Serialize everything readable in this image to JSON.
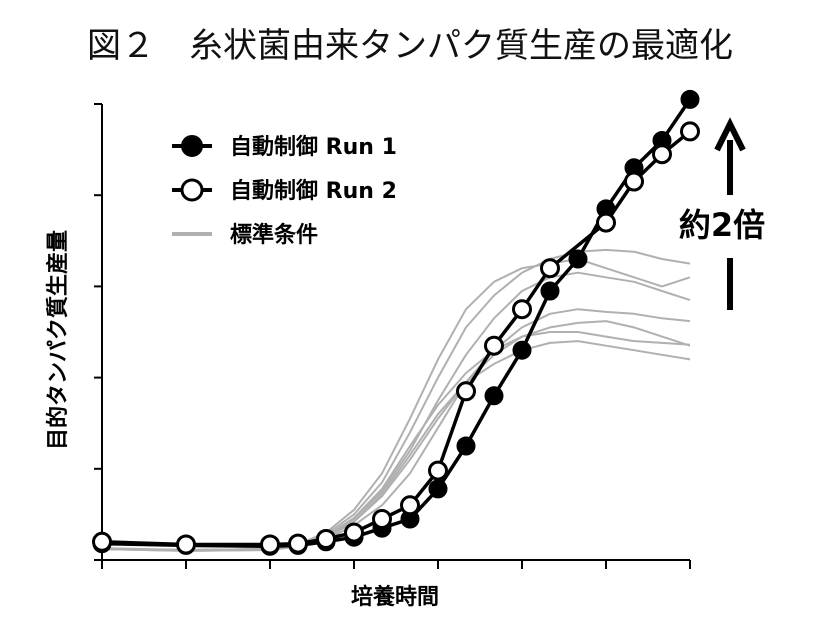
{
  "title": "図２　糸状菌由来タンパク質生産の最適化",
  "chart_data": {
    "type": "line",
    "title": "図２　糸状菌由来タンパク質生産の最適化",
    "xlabel": "培養時間",
    "ylabel": "目的タンパク質生産量",
    "xlim": [
      0,
      21
    ],
    "ylim": [
      0,
      5
    ],
    "x_ticks": 7,
    "y_ticks": 5,
    "grid": false,
    "legend_position": "top-left",
    "series": [
      {
        "name": "自動制御 Run 1",
        "style": "filled-marker",
        "color": "#000000",
        "points": [
          [
            0,
            0.18
          ],
          [
            3,
            0.16
          ],
          [
            6,
            0.15
          ],
          [
            7,
            0.16
          ],
          [
            8,
            0.2
          ],
          [
            9,
            0.25
          ],
          [
            10,
            0.35
          ],
          [
            11,
            0.45
          ],
          [
            12,
            0.78
          ],
          [
            13,
            1.25
          ],
          [
            14,
            1.8
          ],
          [
            15,
            2.3
          ],
          [
            16,
            2.95
          ],
          [
            17,
            3.3
          ],
          [
            18,
            3.85
          ],
          [
            19,
            4.3
          ],
          [
            20,
            4.6
          ],
          [
            21,
            5.05
          ]
        ]
      },
      {
        "name": "自動制御 Run 2",
        "style": "open-marker",
        "color": "#000000",
        "points": [
          [
            0,
            0.2
          ],
          [
            3,
            0.17
          ],
          [
            6,
            0.17
          ],
          [
            7,
            0.18
          ],
          [
            8,
            0.23
          ],
          [
            9,
            0.3
          ],
          [
            10,
            0.45
          ],
          [
            11,
            0.6
          ],
          [
            12,
            0.98
          ],
          [
            13,
            1.85
          ],
          [
            14,
            2.35
          ],
          [
            15,
            2.75
          ],
          [
            16,
            3.2
          ],
          [
            18,
            3.7
          ],
          [
            19,
            4.15
          ],
          [
            20,
            4.45
          ],
          [
            21,
            4.7
          ]
        ]
      },
      {
        "name": "標準条件",
        "style": "thin-line",
        "color": "#b0b0b0",
        "lines": [
          [
            [
              0,
              0.12
            ],
            [
              3,
              0.1
            ],
            [
              6,
              0.11
            ],
            [
              7,
              0.15
            ],
            [
              8,
              0.22
            ],
            [
              9,
              0.38
            ],
            [
              10,
              0.6
            ],
            [
              11,
              0.95
            ],
            [
              12,
              1.45
            ],
            [
              13,
              1.95
            ],
            [
              14,
              2.3
            ],
            [
              15,
              2.55
            ],
            [
              16,
              2.7
            ],
            [
              17,
              2.75
            ],
            [
              18,
              2.72
            ],
            [
              19,
              2.7
            ],
            [
              20,
              2.65
            ],
            [
              21,
              2.62
            ]
          ],
          [
            [
              0,
              0.12
            ],
            [
              3,
              0.11
            ],
            [
              6,
              0.12
            ],
            [
              7,
              0.16
            ],
            [
              8,
              0.24
            ],
            [
              9,
              0.42
            ],
            [
              10,
              0.7
            ],
            [
              11,
              1.1
            ],
            [
              12,
              1.55
            ],
            [
              13,
              1.95
            ],
            [
              14,
              2.25
            ],
            [
              15,
              2.45
            ],
            [
              16,
              2.55
            ],
            [
              17,
              2.6
            ],
            [
              18,
              2.62
            ],
            [
              19,
              2.55
            ],
            [
              20,
              2.45
            ],
            [
              21,
              2.35
            ]
          ],
          [
            [
              0,
              0.12
            ],
            [
              3,
              0.11
            ],
            [
              6,
              0.12
            ],
            [
              7,
              0.16
            ],
            [
              8,
              0.25
            ],
            [
              9,
              0.45
            ],
            [
              10,
              0.75
            ],
            [
              11,
              1.2
            ],
            [
              12,
              1.75
            ],
            [
              13,
              2.25
            ],
            [
              14,
              2.65
            ],
            [
              15,
              2.95
            ],
            [
              16,
              3.1
            ],
            [
              17,
              3.15
            ],
            [
              18,
              3.1
            ],
            [
              19,
              3.05
            ],
            [
              20,
              2.95
            ],
            [
              21,
              2.85
            ]
          ],
          [
            [
              0,
              0.13
            ],
            [
              3,
              0.11
            ],
            [
              6,
              0.12
            ],
            [
              7,
              0.17
            ],
            [
              8,
              0.3
            ],
            [
              9,
              0.55
            ],
            [
              10,
              0.95
            ],
            [
              11,
              1.55
            ],
            [
              12,
              2.2
            ],
            [
              13,
              2.75
            ],
            [
              14,
              3.05
            ],
            [
              15,
              3.2
            ],
            [
              16,
              3.25
            ],
            [
              17,
              3.3
            ],
            [
              18,
              3.2
            ],
            [
              19,
              3.1
            ],
            [
              20,
              3.0
            ],
            [
              21,
              3.1
            ]
          ],
          [
            [
              0,
              0.12
            ],
            [
              3,
              0.1
            ],
            [
              6,
              0.11
            ],
            [
              7,
              0.15
            ],
            [
              8,
              0.28
            ],
            [
              9,
              0.5
            ],
            [
              10,
              0.85
            ],
            [
              11,
              1.4
            ],
            [
              12,
              2.0
            ],
            [
              13,
              2.55
            ],
            [
              14,
              2.9
            ],
            [
              15,
              3.15
            ],
            [
              16,
              3.3
            ],
            [
              17,
              3.38
            ],
            [
              18,
              3.4
            ],
            [
              19,
              3.38
            ],
            [
              20,
              3.3
            ],
            [
              21,
              3.25
            ]
          ],
          [
            [
              0,
              0.12
            ],
            [
              3,
              0.11
            ],
            [
              6,
              0.11
            ],
            [
              7,
              0.15
            ],
            [
              8,
              0.24
            ],
            [
              9,
              0.42
            ],
            [
              10,
              0.72
            ],
            [
              11,
              1.15
            ],
            [
              12,
              1.6
            ],
            [
              13,
              1.95
            ],
            [
              14,
              2.15
            ],
            [
              15,
              2.3
            ],
            [
              16,
              2.38
            ],
            [
              17,
              2.4
            ],
            [
              18,
              2.35
            ],
            [
              19,
              2.3
            ],
            [
              20,
              2.25
            ],
            [
              21,
              2.2
            ]
          ],
          [
            [
              0,
              0.12
            ],
            [
              3,
              0.11
            ],
            [
              6,
              0.12
            ],
            [
              7,
              0.16
            ],
            [
              8,
              0.26
            ],
            [
              9,
              0.46
            ],
            [
              10,
              0.78
            ],
            [
              11,
              1.25
            ],
            [
              12,
              1.7
            ],
            [
              13,
              2.05
            ],
            [
              14,
              2.3
            ],
            [
              15,
              2.45
            ],
            [
              16,
              2.5
            ],
            [
              17,
              2.5
            ],
            [
              18,
              2.45
            ],
            [
              19,
              2.4
            ],
            [
              20,
              2.38
            ],
            [
              21,
              2.36
            ]
          ]
        ]
      }
    ],
    "annotation": {
      "text": "約2倍",
      "arrow": "up"
    }
  }
}
